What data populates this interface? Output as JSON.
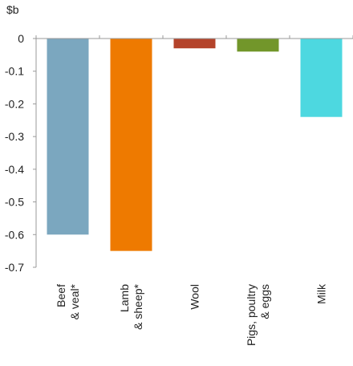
{
  "chart_data": {
    "type": "bar",
    "title": "",
    "unit_label": "$b",
    "xlabel": "",
    "ylabel": "",
    "categories": [
      [
        "Beef",
        "& veal*"
      ],
      [
        "Lamb",
        "& sheep*"
      ],
      [
        "Wool"
      ],
      [
        "Pigs, poultry",
        "& eggs"
      ],
      [
        "Milk"
      ]
    ],
    "values": [
      -0.6,
      -0.65,
      -0.03,
      -0.04,
      -0.24
    ],
    "colors": [
      "#7ba7bf",
      "#ee7a00",
      "#b4432a",
      "#72962a",
      "#4dd8e0"
    ],
    "ylim": [
      -0.7,
      0
    ],
    "yticks": [
      0,
      -0.1,
      -0.2,
      -0.3,
      -0.4,
      -0.5,
      -0.6,
      -0.7
    ],
    "ytick_labels": [
      "0",
      "-0.1",
      "-0.2",
      "-0.3",
      "-0.4",
      "-0.5",
      "-0.6",
      "-0.7"
    ],
    "grid": false,
    "legend": "none"
  }
}
